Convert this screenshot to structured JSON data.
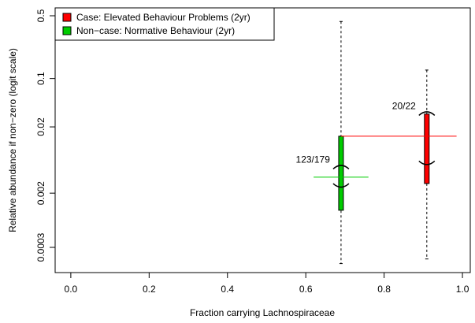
{
  "chart_data": {
    "type": "box",
    "xlabel": "Fraction carrying Lachnospiraceae",
    "ylabel": "Relative abundance if non−zero (logit scale)",
    "x_ticks": [
      "0.0",
      "0.2",
      "0.4",
      "0.6",
      "0.8",
      "1.0"
    ],
    "x_tick_values": [
      0.0,
      0.2,
      0.4,
      0.6,
      0.8,
      1.0
    ],
    "xlim": [
      -0.04,
      1.02
    ],
    "y_scale": "logit",
    "y_ticks": [
      "0.5",
      "0.1",
      "0.02",
      "0.002",
      "0.0003"
    ],
    "y_tick_values": [
      0.5,
      0.1,
      0.02,
      0.002,
      0.0003
    ],
    "legend": {
      "position": "top-left",
      "entries": [
        {
          "label": "Case: Elevated Behaviour Problems (2yr)",
          "color": "#ff0000"
        },
        {
          "label": "Non−case: Normative Behaviour (2yr)",
          "color": "#00cc00"
        }
      ]
    },
    "series": [
      {
        "label": "123/179",
        "color": "#00cc00",
        "x": 0.69,
        "mean_x_range": [
          0.62,
          0.76
        ],
        "whisker_low": 0.00017,
        "whisker_high": 0.45,
        "box_low": 0.0011,
        "box_high": 0.0145,
        "median": 0.0035,
        "ci_low": 0.0025,
        "ci_high": 0.0052
      },
      {
        "label": "20/22",
        "color": "#ff0000",
        "x": 0.909,
        "mean_x_range": [
          0.69,
          0.985
        ],
        "whisker_low": 0.0002,
        "whisker_high": 0.13,
        "box_low": 0.0028,
        "box_high": 0.031,
        "median": 0.0145,
        "ci_low": 0.0055,
        "ci_high": 0.033
      }
    ]
  }
}
